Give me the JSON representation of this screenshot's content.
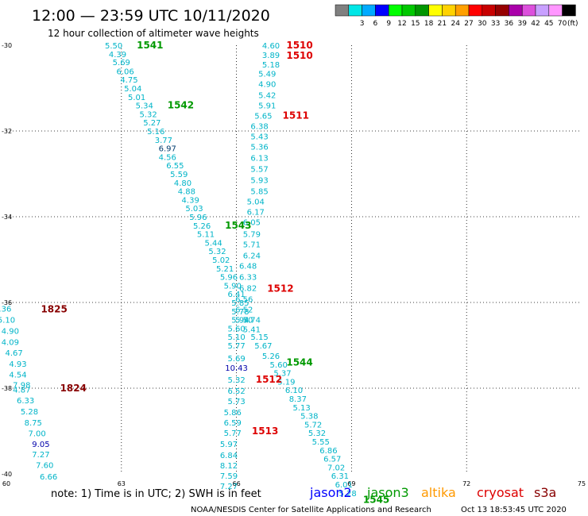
{
  "title": "12:00 — 23:59 UTC 10/11/2020",
  "subtitle": "12 hour collection of altimeter wave heights",
  "note": "note: 1) Time is in UTC; 2) SWH is in feet",
  "footer": "NOAA/NESDIS Center for Satellite Applications and Research",
  "timestamp": "Oct 13 18:53:45 UTC 2020",
  "legend_unit": "(ft)",
  "scale": [
    {
      "label": "",
      "color": "#808080"
    },
    {
      "label": "3",
      "color": "#00e6e6"
    },
    {
      "label": "6",
      "color": "#00aaff"
    },
    {
      "label": "9",
      "color": "#0000ff"
    },
    {
      "label": "12",
      "color": "#00ff00"
    },
    {
      "label": "15",
      "color": "#00c800"
    },
    {
      "label": "18",
      "color": "#009600"
    },
    {
      "label": "21",
      "color": "#ffff00"
    },
    {
      "label": "24",
      "color": "#ffd200"
    },
    {
      "label": "27",
      "color": "#ffa000"
    },
    {
      "label": "30",
      "color": "#ff0000"
    },
    {
      "label": "33",
      "color": "#c80000"
    },
    {
      "label": "36",
      "color": "#960000"
    },
    {
      "label": "39",
      "color": "#aa00aa"
    },
    {
      "label": "42",
      "color": "#dc50dc"
    },
    {
      "label": "45",
      "color": "#c8a0ff"
    },
    {
      "label": "70",
      "color": "#ff96ff"
    },
    {
      "label": "",
      "color": "#000000"
    }
  ],
  "satellites": [
    {
      "name": "jason2",
      "color": "#0000ff"
    },
    {
      "name": "jason3",
      "color": "#009900"
    },
    {
      "name": "altika",
      "color": "#ff9900"
    },
    {
      "name": "cryosat",
      "color": "#dd0000"
    },
    {
      "name": "s3a",
      "color": "#880000"
    }
  ],
  "chart_data": {
    "type": "scatter",
    "xlim": [
      60,
      75
    ],
    "ylim": [
      -40,
      -30
    ],
    "x_ticks": [
      "60",
      "63",
      "66",
      "69",
      "72",
      "75"
    ],
    "y_ticks": [
      "-30",
      "-32",
      "-34",
      "-36",
      "-38",
      "-40"
    ],
    "grid": true,
    "colors": {
      "teal": "#00b4c8",
      "blue": "#0000aa",
      "navy": "#003c6e"
    },
    "values": [
      {
        "x": 59.9,
        "y": -36.14,
        "v": "5.36",
        "c": "teal"
      },
      {
        "x": 60.0,
        "y": -36.4,
        "v": "5.10",
        "c": "teal"
      },
      {
        "x": 60.1,
        "y": -36.66,
        "v": "4.90",
        "c": "teal"
      },
      {
        "x": 60.1,
        "y": -36.92,
        "v": "4.09",
        "c": "teal"
      },
      {
        "x": 60.2,
        "y": -37.17,
        "v": "4.67",
        "c": "teal"
      },
      {
        "x": 60.3,
        "y": -37.43,
        "v": "4.93",
        "c": "teal"
      },
      {
        "x": 60.3,
        "y": -37.68,
        "v": "4.54",
        "c": "teal"
      },
      {
        "x": 60.4,
        "y": -37.92,
        "v": "7.98",
        "c": "teal"
      },
      {
        "x": 60.4,
        "y": -38.03,
        "v": "4.87",
        "c": "teal"
      },
      {
        "x": 60.5,
        "y": -38.28,
        "v": "6.33",
        "c": "teal"
      },
      {
        "x": 60.6,
        "y": -38.54,
        "v": "5.28",
        "c": "teal"
      },
      {
        "x": 60.7,
        "y": -38.8,
        "v": "8.75",
        "c": "teal"
      },
      {
        "x": 60.8,
        "y": -39.05,
        "v": "7.00",
        "c": "teal"
      },
      {
        "x": 60.9,
        "y": -39.3,
        "v": "9.05",
        "c": "blue"
      },
      {
        "x": 60.9,
        "y": -39.54,
        "v": "7.27",
        "c": "teal"
      },
      {
        "x": 61.0,
        "y": -39.79,
        "v": "7.60",
        "c": "teal"
      },
      {
        "x": 61.1,
        "y": -40.06,
        "v": "6.66",
        "c": "teal"
      },
      {
        "x": 62.8,
        "y": -30.0,
        "v": "5.50",
        "c": "teal"
      },
      {
        "x": 62.9,
        "y": -30.2,
        "v": "4.39",
        "c": "teal"
      },
      {
        "x": 63.0,
        "y": -30.39,
        "v": "5.69",
        "c": "teal"
      },
      {
        "x": 63.1,
        "y": -30.6,
        "v": "6.06",
        "c": "teal"
      },
      {
        "x": 63.2,
        "y": -30.8,
        "v": "4.75",
        "c": "teal"
      },
      {
        "x": 63.3,
        "y": -31.0,
        "v": "5.04",
        "c": "teal"
      },
      {
        "x": 63.4,
        "y": -31.2,
        "v": "5.01",
        "c": "teal"
      },
      {
        "x": 63.6,
        "y": -31.4,
        "v": "5.34",
        "c": "teal"
      },
      {
        "x": 63.7,
        "y": -31.6,
        "v": "5.32",
        "c": "teal"
      },
      {
        "x": 63.8,
        "y": -31.8,
        "v": "5.27",
        "c": "teal"
      },
      {
        "x": 63.9,
        "y": -32.0,
        "v": "5.16",
        "c": "teal"
      },
      {
        "x": 64.1,
        "y": -32.2,
        "v": "3.77",
        "c": "teal"
      },
      {
        "x": 64.2,
        "y": -32.4,
        "v": "6.97",
        "c": "navy"
      },
      {
        "x": 64.2,
        "y": -32.6,
        "v": "4.56",
        "c": "teal"
      },
      {
        "x": 64.4,
        "y": -32.8,
        "v": "6.55",
        "c": "teal"
      },
      {
        "x": 64.5,
        "y": -33.0,
        "v": "5.59",
        "c": "teal"
      },
      {
        "x": 64.6,
        "y": -33.2,
        "v": "4.80",
        "c": "teal"
      },
      {
        "x": 64.7,
        "y": -33.4,
        "v": "4.88",
        "c": "teal"
      },
      {
        "x": 64.8,
        "y": -33.6,
        "v": "4.39",
        "c": "teal"
      },
      {
        "x": 64.9,
        "y": -33.8,
        "v": "5.03",
        "c": "teal"
      },
      {
        "x": 65.0,
        "y": -34.0,
        "v": "5.96",
        "c": "teal"
      },
      {
        "x": 65.1,
        "y": -34.2,
        "v": "5.26",
        "c": "teal"
      },
      {
        "x": 65.2,
        "y": -34.4,
        "v": "5.11",
        "c": "teal"
      },
      {
        "x": 65.4,
        "y": -34.6,
        "v": "5.44",
        "c": "teal"
      },
      {
        "x": 65.5,
        "y": -34.8,
        "v": "5.32",
        "c": "teal"
      },
      {
        "x": 65.6,
        "y": -35.0,
        "v": "5.02",
        "c": "teal"
      },
      {
        "x": 65.7,
        "y": -35.2,
        "v": "5.21",
        "c": "teal"
      },
      {
        "x": 65.8,
        "y": -35.4,
        "v": "5.96",
        "c": "teal"
      },
      {
        "x": 65.9,
        "y": -35.6,
        "v": "5.90",
        "c": "teal"
      },
      {
        "x": 66.0,
        "y": -35.8,
        "v": "6.41",
        "c": "teal"
      },
      {
        "x": 66.1,
        "y": -36.0,
        "v": "5.85",
        "c": "teal"
      },
      {
        "x": 66.1,
        "y": -36.2,
        "v": "5.78",
        "c": "teal"
      },
      {
        "x": 66.1,
        "y": -36.4,
        "v": "5.94",
        "c": "teal"
      },
      {
        "x": 66.0,
        "y": -36.6,
        "v": "5.60",
        "c": "teal"
      },
      {
        "x": 66.0,
        "y": -36.8,
        "v": "5.10",
        "c": "teal"
      },
      {
        "x": 66.0,
        "y": -37.0,
        "v": "5.77",
        "c": "teal"
      },
      {
        "x": 66.0,
        "y": -37.3,
        "v": "5.69",
        "c": "teal"
      },
      {
        "x": 66.0,
        "y": -37.52,
        "v": "10.43",
        "c": "blue"
      },
      {
        "x": 66.0,
        "y": -37.8,
        "v": "5.32",
        "c": "teal"
      },
      {
        "x": 66.0,
        "y": -38.06,
        "v": "6.52",
        "c": "teal"
      },
      {
        "x": 66.0,
        "y": -38.3,
        "v": "5.73",
        "c": "teal"
      },
      {
        "x": 65.9,
        "y": -38.56,
        "v": "5.86",
        "c": "teal"
      },
      {
        "x": 65.9,
        "y": -38.8,
        "v": "6.59",
        "c": "teal"
      },
      {
        "x": 65.9,
        "y": -39.04,
        "v": "5.77",
        "c": "teal"
      },
      {
        "x": 65.8,
        "y": -39.3,
        "v": "5.97",
        "c": "teal"
      },
      {
        "x": 65.8,
        "y": -39.56,
        "v": "6.84",
        "c": "teal"
      },
      {
        "x": 65.8,
        "y": -39.8,
        "v": "8.12",
        "c": "teal"
      },
      {
        "x": 65.8,
        "y": -40.04,
        "v": "7.59",
        "c": "teal"
      },
      {
        "x": 65.8,
        "y": -40.28,
        "v": "7.27",
        "c": "teal"
      },
      {
        "x": 66.9,
        "y": -30.0,
        "v": "4.60",
        "c": "teal"
      },
      {
        "x": 66.9,
        "y": -30.22,
        "v": "3.89",
        "c": "teal"
      },
      {
        "x": 66.9,
        "y": -30.44,
        "v": "5.18",
        "c": "teal"
      },
      {
        "x": 66.8,
        "y": -30.66,
        "v": "5.49",
        "c": "teal"
      },
      {
        "x": 66.8,
        "y": -30.9,
        "v": "4.90",
        "c": "teal"
      },
      {
        "x": 66.8,
        "y": -31.16,
        "v": "5.42",
        "c": "teal"
      },
      {
        "x": 66.8,
        "y": -31.4,
        "v": "5.91",
        "c": "teal"
      },
      {
        "x": 66.7,
        "y": -31.64,
        "v": "5.65",
        "c": "teal"
      },
      {
        "x": 66.6,
        "y": -31.88,
        "v": "6.38",
        "c": "teal"
      },
      {
        "x": 66.6,
        "y": -32.12,
        "v": "5.43",
        "c": "teal"
      },
      {
        "x": 66.6,
        "y": -32.36,
        "v": "5.36",
        "c": "teal"
      },
      {
        "x": 66.6,
        "y": -32.62,
        "v": "6.13",
        "c": "teal"
      },
      {
        "x": 66.6,
        "y": -32.88,
        "v": "5.57",
        "c": "teal"
      },
      {
        "x": 66.6,
        "y": -33.14,
        "v": "5.93",
        "c": "teal"
      },
      {
        "x": 66.6,
        "y": -33.4,
        "v": "5.85",
        "c": "teal"
      },
      {
        "x": 66.5,
        "y": -33.64,
        "v": "5.04",
        "c": "teal"
      },
      {
        "x": 66.5,
        "y": -33.88,
        "v": "6.17",
        "c": "teal"
      },
      {
        "x": 66.4,
        "y": -34.12,
        "v": "6.05",
        "c": "teal"
      },
      {
        "x": 66.4,
        "y": -34.4,
        "v": "5.79",
        "c": "teal"
      },
      {
        "x": 66.4,
        "y": -34.64,
        "v": "5.71",
        "c": "teal"
      },
      {
        "x": 66.4,
        "y": -34.9,
        "v": "6.24",
        "c": "teal"
      },
      {
        "x": 66.3,
        "y": -35.14,
        "v": "6.48",
        "c": "teal"
      },
      {
        "x": 66.3,
        "y": -35.4,
        "v": "6.33",
        "c": "teal"
      },
      {
        "x": 66.3,
        "y": -35.66,
        "v": "6.82",
        "c": "teal"
      },
      {
        "x": 66.2,
        "y": -35.92,
        "v": "6.56",
        "c": "teal"
      },
      {
        "x": 66.2,
        "y": -36.16,
        "v": "6.52",
        "c": "teal"
      },
      {
        "x": 66.2,
        "y": -36.4,
        "v": "5.70",
        "c": "teal"
      },
      {
        "x": 66.4,
        "y": -36.4,
        "v": "5.74",
        "c": "teal"
      },
      {
        "x": 66.4,
        "y": -36.62,
        "v": "5.41",
        "c": "teal"
      },
      {
        "x": 66.6,
        "y": -36.8,
        "v": "5.15",
        "c": "teal"
      },
      {
        "x": 66.7,
        "y": -37.0,
        "v": "5.67",
        "c": "teal"
      },
      {
        "x": 66.9,
        "y": -37.24,
        "v": "5.26",
        "c": "teal"
      },
      {
        "x": 67.1,
        "y": -37.44,
        "v": "5.60",
        "c": "teal"
      },
      {
        "x": 67.2,
        "y": -37.64,
        "v": "5.37",
        "c": "teal"
      },
      {
        "x": 67.3,
        "y": -37.84,
        "v": "5.19",
        "c": "teal"
      },
      {
        "x": 67.5,
        "y": -38.04,
        "v": "6.10",
        "c": "teal"
      },
      {
        "x": 67.6,
        "y": -38.24,
        "v": "8.37",
        "c": "teal"
      },
      {
        "x": 67.7,
        "y": -38.44,
        "v": "5.13",
        "c": "teal"
      },
      {
        "x": 67.9,
        "y": -38.64,
        "v": "5.38",
        "c": "teal"
      },
      {
        "x": 68.0,
        "y": -38.84,
        "v": "5.72",
        "c": "teal"
      },
      {
        "x": 68.1,
        "y": -39.04,
        "v": "5.32",
        "c": "teal"
      },
      {
        "x": 68.2,
        "y": -39.24,
        "v": "5.55",
        "c": "teal"
      },
      {
        "x": 68.4,
        "y": -39.44,
        "v": "6.86",
        "c": "teal"
      },
      {
        "x": 68.5,
        "y": -39.64,
        "v": "6.57",
        "c": "teal"
      },
      {
        "x": 68.6,
        "y": -39.84,
        "v": "7.02",
        "c": "teal"
      },
      {
        "x": 68.7,
        "y": -40.04,
        "v": "6.31",
        "c": "teal"
      },
      {
        "x": 68.8,
        "y": -40.24,
        "v": "6.01",
        "c": "teal"
      },
      {
        "x": 68.9,
        "y": -40.44,
        "v": "5.28",
        "c": "teal"
      }
    ],
    "passes": [
      {
        "x": 63.4,
        "y": -30.0,
        "label": "1541",
        "color": "#009900"
      },
      {
        "x": 64.2,
        "y": -31.4,
        "label": "1542",
        "color": "#009900"
      },
      {
        "x": 65.7,
        "y": -34.2,
        "label": "1543",
        "color": "#009900"
      },
      {
        "x": 67.3,
        "y": -37.4,
        "label": "1544",
        "color": "#009900"
      },
      {
        "x": 69.3,
        "y": -40.6,
        "label": "1545",
        "color": "#009900"
      },
      {
        "x": 67.3,
        "y": -30.0,
        "label": "1510",
        "color": "#dd0000"
      },
      {
        "x": 67.3,
        "y": -30.24,
        "label": "1510",
        "color": "#dd0000"
      },
      {
        "x": 67.2,
        "y": -31.64,
        "label": "1511",
        "color": "#dd0000"
      },
      {
        "x": 66.8,
        "y": -35.68,
        "label": "1512",
        "color": "#dd0000"
      },
      {
        "x": 66.5,
        "y": -37.8,
        "label": "1512",
        "color": "#dd0000"
      },
      {
        "x": 66.4,
        "y": -39.0,
        "label": "1513",
        "color": "#dd0000"
      },
      {
        "x": 60.9,
        "y": -36.16,
        "label": "1825",
        "color": "#880000"
      },
      {
        "x": 61.4,
        "y": -38.0,
        "label": "1824",
        "color": "#880000"
      }
    ]
  }
}
